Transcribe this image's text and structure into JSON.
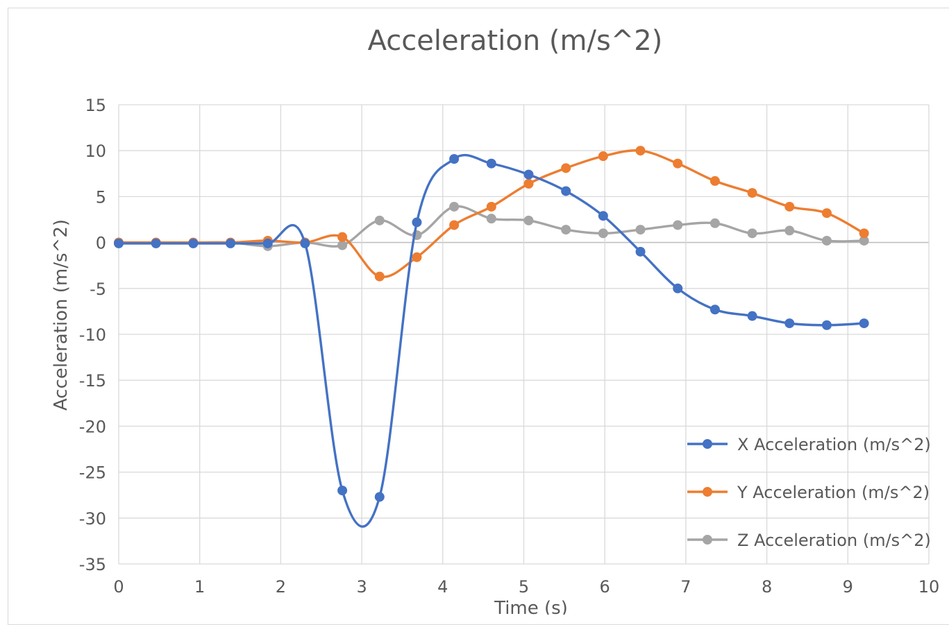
{
  "chart_data": {
    "type": "line",
    "title": "Acceleration (m/s^2)",
    "xlabel": "Time (s)",
    "ylabel": "Acceleration (m/s^2)",
    "xlim": [
      0,
      10
    ],
    "ylim": [
      -35,
      15
    ],
    "xticks": [
      "0",
      "1",
      "2",
      "3",
      "4",
      "5",
      "6",
      "7",
      "8",
      "9",
      "10"
    ],
    "yticks": [
      "15",
      "10",
      "5",
      "0",
      "-5",
      "-10",
      "-15",
      "-20",
      "-25",
      "-30",
      "-35"
    ],
    "grid": true,
    "legend_position": "bottom-right",
    "x": [
      0,
      0.46,
      0.92,
      1.38,
      1.84,
      2.3,
      2.76,
      3.22,
      3.68,
      4.14,
      4.6,
      5.06,
      5.52,
      5.98,
      6.44,
      6.9,
      7.36,
      7.82,
      8.28,
      8.74,
      9.2
    ],
    "series": [
      {
        "name": "X Acceleration (m/s^2)",
        "color": "#4472c4",
        "values": [
          -0.1,
          -0.1,
          -0.1,
          -0.1,
          -0.1,
          -0.1,
          -27.0,
          -27.7,
          2.2,
          9.1,
          8.6,
          7.4,
          5.6,
          2.9,
          -1.0,
          -5.0,
          -7.3,
          -8.0,
          -8.8,
          -9.0,
          -8.8
        ]
      },
      {
        "name": "Y Acceleration (m/s^2)",
        "color": "#ed7d31",
        "values": [
          0.0,
          0.0,
          0.0,
          0.0,
          0.2,
          0.0,
          0.6,
          -3.7,
          -1.6,
          1.9,
          3.9,
          6.4,
          8.1,
          9.4,
          10.0,
          8.6,
          6.7,
          5.4,
          3.9,
          3.2,
          1.0
        ]
      },
      {
        "name": "Z Acceleration (m/s^2)",
        "color": "#a5a5a5",
        "values": [
          0.0,
          0.0,
          0.0,
          0.0,
          -0.4,
          0.0,
          -0.3,
          2.4,
          0.8,
          3.9,
          2.6,
          2.4,
          1.4,
          1.0,
          1.4,
          1.9,
          2.1,
          1.0,
          1.3,
          0.2,
          0.2
        ]
      }
    ]
  }
}
